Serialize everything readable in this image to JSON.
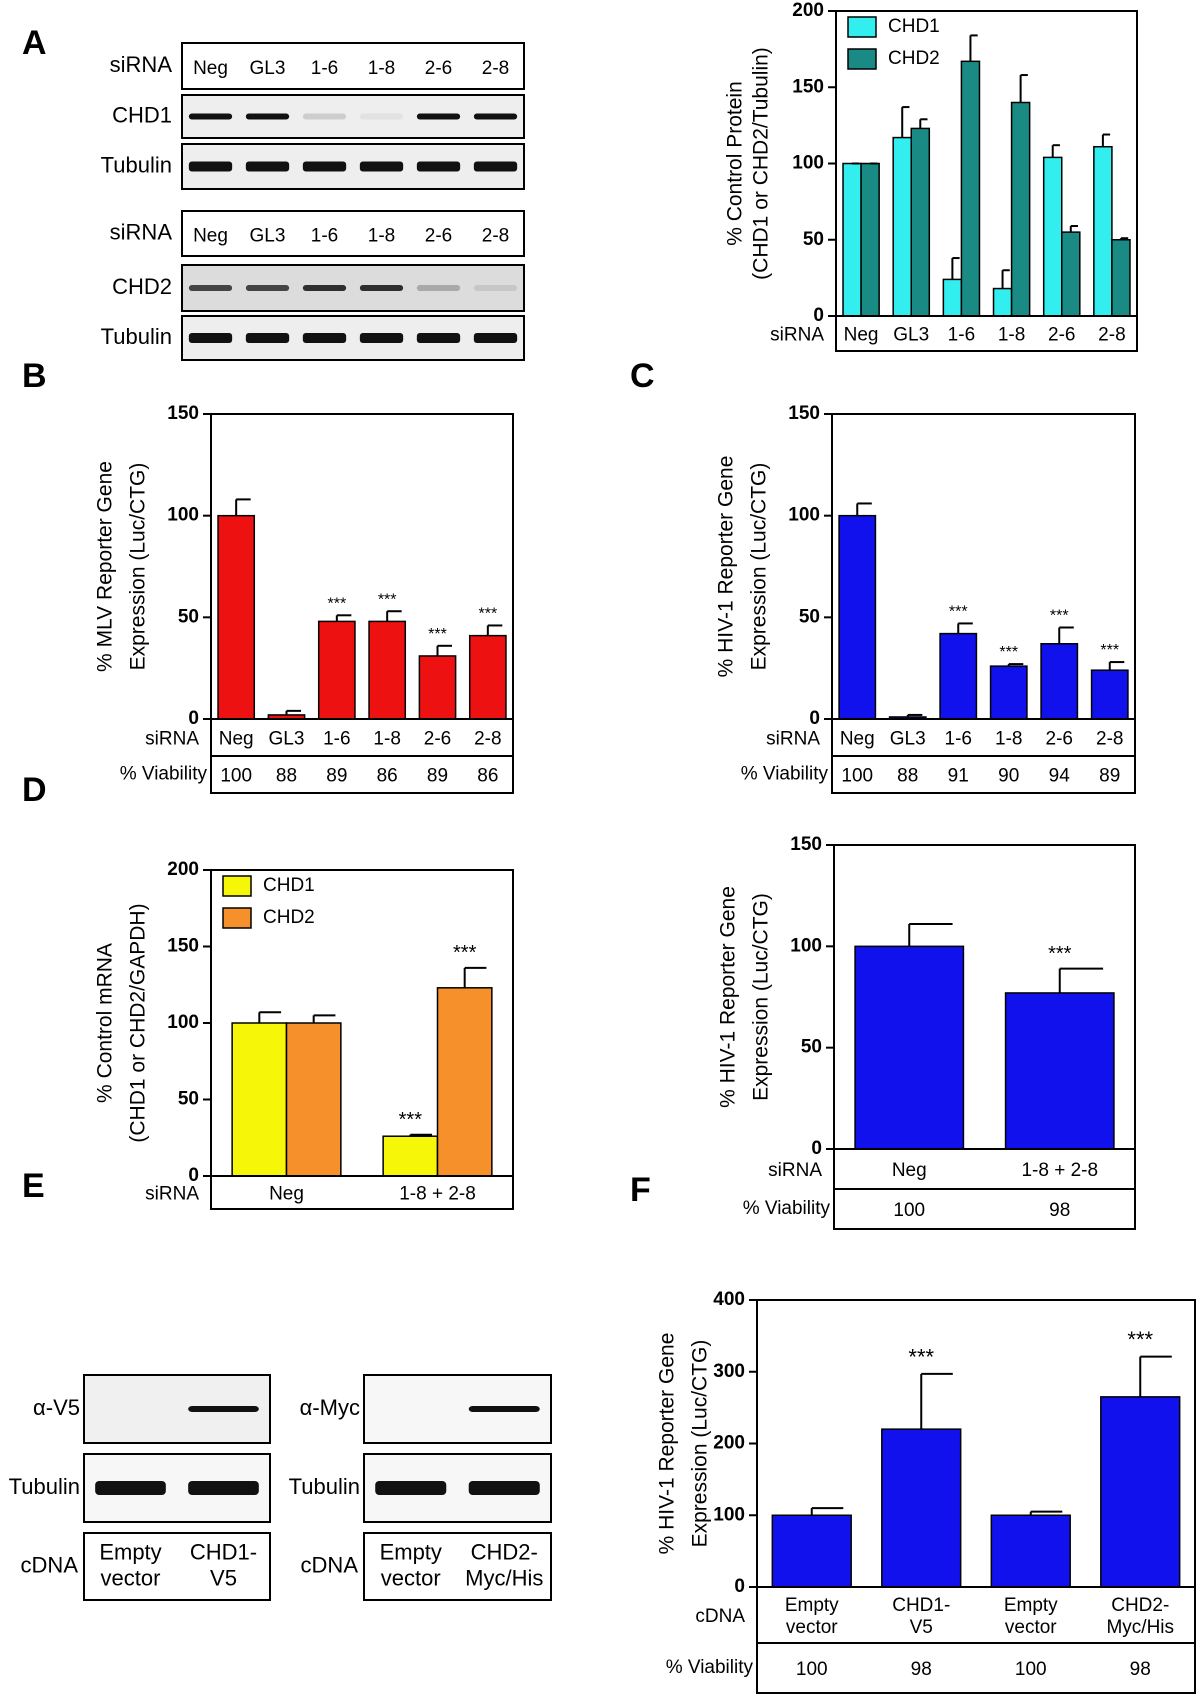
{
  "panel_labels": [
    "A",
    "B",
    "C",
    "D",
    "E",
    "F"
  ],
  "blots_a": [
    {
      "header": "siRNA",
      "lanes": [
        "Neg",
        "GL3",
        "1-6",
        "1-8",
        "2-6",
        "2-8"
      ],
      "rows": [
        "CHD1",
        "Tubulin"
      ]
    },
    {
      "header": "siRNA",
      "lanes": [
        "Neg",
        "GL3",
        "1-6",
        "1-8",
        "2-6",
        "2-8"
      ],
      "rows": [
        "CHD2",
        "Tubulin"
      ]
    }
  ],
  "blots_e": [
    {
      "rows": [
        "α-V5",
        "Tubulin"
      ],
      "footer": "cDNA",
      "lanes": [
        [
          "Empty",
          "vector"
        ],
        [
          "CHD1-",
          "V5"
        ]
      ]
    },
    {
      "rows": [
        "α-Myc",
        "Tubulin"
      ],
      "footer": "cDNA",
      "lanes": [
        [
          "Empty",
          "vector"
        ],
        [
          "CHD2-",
          "Myc/His"
        ]
      ]
    }
  ],
  "chart_data": [
    {
      "type": "bar",
      "ylabel": [
        "% Control Protein",
        "(CHD1 or CHD2/Tubulin)"
      ],
      "xlabel": "siRNA",
      "categories": [
        "Neg",
        "GL3",
        "1-6",
        "1-8",
        "2-6",
        "2-8"
      ],
      "series": [
        {
          "name": "CHD1",
          "color": "#33eeee",
          "values": [
            100,
            117,
            24,
            18,
            104,
            111
          ],
          "errors": [
            0,
            20,
            14,
            12,
            8,
            8
          ]
        },
        {
          "name": "CHD2",
          "color": "#1a8a85",
          "values": [
            100,
            123,
            167,
            140,
            55,
            50
          ],
          "errors": [
            0,
            6,
            17,
            18,
            4,
            1
          ]
        }
      ],
      "ylim": [
        0,
        200
      ],
      "yticks": [
        0,
        50,
        100,
        150,
        200
      ],
      "legend": "upper left"
    },
    {
      "type": "bar",
      "ylabel": [
        "% MLV Reporter Gene",
        "Expression (Luc/CTG)"
      ],
      "xlabel": "siRNA",
      "categories": [
        "Neg",
        "GL3",
        "1-6",
        "1-8",
        "2-6",
        "2-8"
      ],
      "color": "#ee1111",
      "values": [
        100,
        2,
        48,
        48,
        31,
        41
      ],
      "errors": [
        8,
        2,
        3,
        5,
        5,
        5
      ],
      "annotations": [
        null,
        null,
        "***",
        "***",
        "***",
        "***"
      ],
      "ylim": [
        0,
        150
      ],
      "yticks": [
        0,
        50,
        100,
        150
      ],
      "row_label": "% Viability",
      "row_values": [
        100,
        88,
        89,
        86,
        89,
        86
      ]
    },
    {
      "type": "bar",
      "ylabel": [
        "% HIV-1 Reporter Gene",
        "Expression (Luc/CTG)"
      ],
      "xlabel": "siRNA",
      "categories": [
        "Neg",
        "GL3",
        "1-6",
        "1-8",
        "2-6",
        "2-8"
      ],
      "color": "#1111ee",
      "values": [
        100,
        1,
        42,
        26,
        37,
        24
      ],
      "errors": [
        6,
        1,
        5,
        1,
        8,
        4
      ],
      "annotations": [
        null,
        null,
        "***",
        "***",
        "***",
        "***"
      ],
      "ylim": [
        0,
        150
      ],
      "yticks": [
        0,
        50,
        100,
        150
      ],
      "row_label": "% Viability",
      "row_values": [
        100,
        88,
        91,
        90,
        94,
        89
      ]
    },
    {
      "type": "bar",
      "ylabel": [
        "% Control mRNA",
        "(CHD1 or CHD2/GAPDH)"
      ],
      "xlabel": "siRNA",
      "categories": [
        "Neg",
        "1-8 + 2-8"
      ],
      "series": [
        {
          "name": "CHD1",
          "color": "#f6f609",
          "values": [
            100,
            26
          ],
          "errors": [
            7,
            1
          ],
          "annotations": [
            null,
            "***"
          ]
        },
        {
          "name": "CHD2",
          "color": "#f5902a",
          "values": [
            100,
            123
          ],
          "errors": [
            5,
            13
          ],
          "annotations": [
            null,
            "***"
          ]
        }
      ],
      "ylim": [
        0,
        200
      ],
      "yticks": [
        0,
        50,
        100,
        150,
        200
      ],
      "legend": "upper left"
    },
    {
      "type": "bar",
      "ylabel": [
        "% HIV-1 Reporter Gene",
        "Expression (Luc/CTG)"
      ],
      "xlabel": "siRNA",
      "categories": [
        "Neg",
        "1-8 + 2-8"
      ],
      "color": "#1111ee",
      "values": [
        100,
        77
      ],
      "errors": [
        11,
        12
      ],
      "annotations": [
        null,
        "***"
      ],
      "ylim": [
        0,
        150
      ],
      "yticks": [
        0,
        50,
        100,
        150
      ],
      "row_label": "% Viability",
      "row_values": [
        100,
        98
      ]
    },
    {
      "type": "bar",
      "ylabel": [
        "% HIV-1 Reporter Gene",
        "Expression (Luc/CTG)"
      ],
      "xlabel": "cDNA",
      "categories": [
        [
          "Empty",
          "vector"
        ],
        [
          "CHD1-",
          "V5"
        ],
        [
          "Empty",
          "vector"
        ],
        [
          "CHD2-",
          "Myc/His"
        ]
      ],
      "color": "#1111ee",
      "values": [
        100,
        220,
        100,
        265
      ],
      "errors": [
        10,
        77,
        5,
        56
      ],
      "annotations": [
        null,
        "***",
        null,
        "***"
      ],
      "ylim": [
        0,
        400
      ],
      "yticks": [
        0,
        100,
        200,
        300,
        400
      ],
      "row_label": "% Viability",
      "row_values": [
        100,
        98,
        100,
        98
      ]
    }
  ]
}
